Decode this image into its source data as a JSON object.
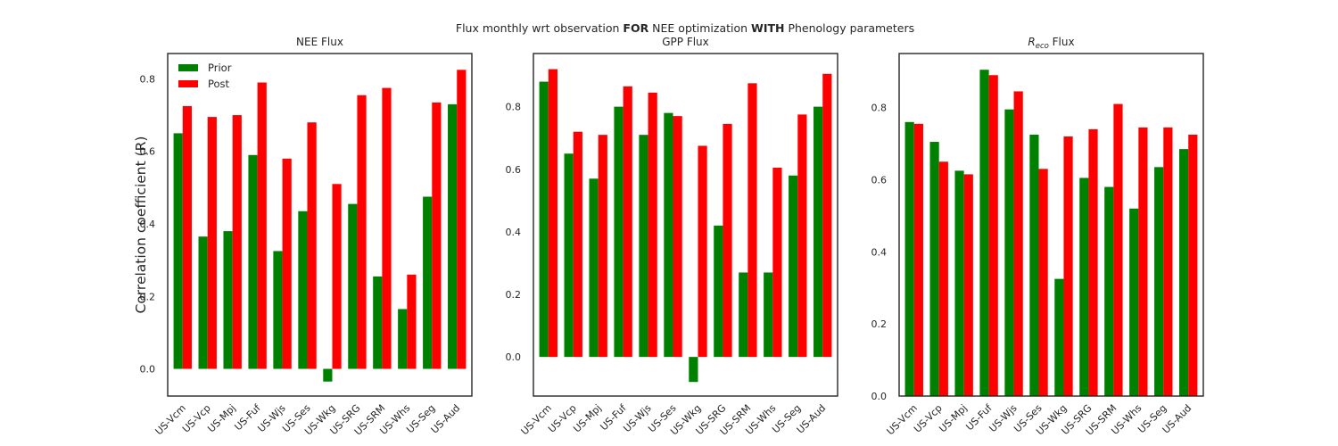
{
  "figure": {
    "suptitle_pre": "Flux monthly wrt observation ",
    "suptitle_b1": "FOR",
    "suptitle_mid": " NEE optimization ",
    "suptitle_b2": "WITH",
    "suptitle_post": " Phenology parameters",
    "ylabel": "Correlation coefficient (R)"
  },
  "colors": {
    "prior": "#008000",
    "post": "#ff0000",
    "frame": "#262626"
  },
  "chart_data": [
    {
      "type": "bar",
      "title": "NEE Flux",
      "categories": [
        "US-Vcm",
        "US-Vcp",
        "US-Mpj",
        "US-Fuf",
        "US-Wjs",
        "US-Ses",
        "US-Wkg",
        "US-SRG",
        "US-SRM",
        "US-Whs",
        "US-Seg",
        "US-Aud"
      ],
      "series": [
        {
          "name": "Prior",
          "values": [
            0.65,
            0.365,
            0.38,
            0.59,
            0.325,
            0.435,
            -0.035,
            0.455,
            0.255,
            0.165,
            0.475,
            0.73
          ]
        },
        {
          "name": "Post",
          "values": [
            0.725,
            0.695,
            0.7,
            0.79,
            0.58,
            0.68,
            0.51,
            0.755,
            0.775,
            0.26,
            0.735,
            0.825
          ]
        }
      ],
      "ylim": [
        -0.075,
        0.87
      ],
      "yticks": [
        0.0,
        0.2,
        0.4,
        0.6,
        0.8
      ],
      "ytick_labels": [
        "0.0",
        "0.2",
        "0.4",
        "0.6",
        "0.8"
      ],
      "legend": true,
      "legend_position": "upper-left"
    },
    {
      "type": "bar",
      "title": "GPP Flux",
      "categories": [
        "US-Vcm",
        "US-Vcp",
        "US-Mpj",
        "US-Fuf",
        "US-Wjs",
        "US-Ses",
        "US-Wkg",
        "US-SRG",
        "US-SRM",
        "US-Whs",
        "US-Seg",
        "US-Aud"
      ],
      "series": [
        {
          "name": "Prior",
          "values": [
            0.88,
            0.65,
            0.57,
            0.8,
            0.71,
            0.78,
            -0.08,
            0.42,
            0.27,
            0.27,
            0.58,
            0.8
          ]
        },
        {
          "name": "Post",
          "values": [
            0.92,
            0.72,
            0.71,
            0.865,
            0.845,
            0.77,
            0.675,
            0.745,
            0.875,
            0.605,
            0.775,
            0.905
          ]
        }
      ],
      "ylim": [
        -0.125,
        0.97
      ],
      "yticks": [
        0.0,
        0.2,
        0.4,
        0.6,
        0.8
      ],
      "ytick_labels": [
        "0.0",
        "0.2",
        "0.4",
        "0.6",
        "0.8"
      ],
      "legend": false
    },
    {
      "type": "bar",
      "title_main": "R",
      "title_sub": "eco",
      "title_rest": " Flux",
      "categories": [
        "US-Vcm",
        "US-Vcp",
        "US-Mpj",
        "US-Fuf",
        "US-Wjs",
        "US-Ses",
        "US-Wkg",
        "US-SRG",
        "US-SRM",
        "US-Whs",
        "US-Seg",
        "US-Aud"
      ],
      "series": [
        {
          "name": "Prior",
          "values": [
            0.76,
            0.705,
            0.625,
            0.905,
            0.795,
            0.725,
            0.325,
            0.605,
            0.58,
            0.52,
            0.635,
            0.685
          ]
        },
        {
          "name": "Post",
          "values": [
            0.755,
            0.65,
            0.615,
            0.89,
            0.845,
            0.63,
            0.72,
            0.74,
            0.81,
            0.745,
            0.745,
            0.725
          ]
        }
      ],
      "ylim": [
        0.0,
        0.95
      ],
      "yticks": [
        0.0,
        0.2,
        0.4,
        0.6,
        0.8
      ],
      "ytick_labels": [
        "0.0",
        "0.2",
        "0.4",
        "0.6",
        "0.8"
      ],
      "legend": false
    }
  ]
}
